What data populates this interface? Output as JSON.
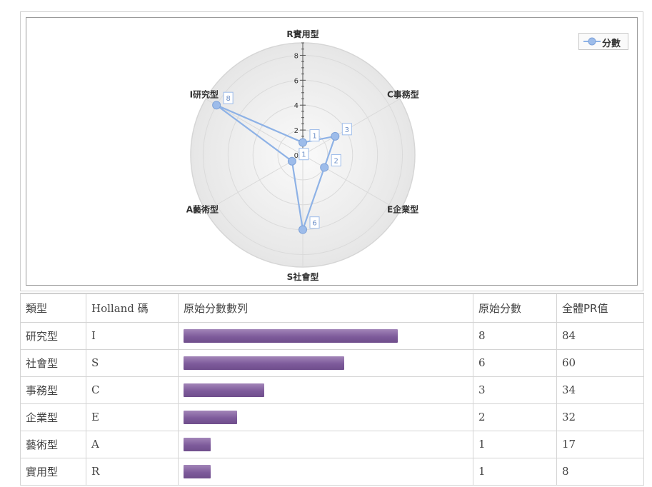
{
  "chart_data": {
    "type": "radar",
    "axes": [
      "R實用型",
      "C事務型",
      "E企業型",
      "S社會型",
      "A藝術型",
      "I研究型"
    ],
    "series": [
      {
        "name": "分數",
        "values": [
          1,
          3,
          2,
          6,
          1,
          8
        ],
        "color": "#8eb2e6"
      }
    ],
    "range": [
      0,
      9
    ],
    "tick_values": [
      0,
      2,
      4,
      6,
      8
    ],
    "data_labels": [
      "1",
      "3",
      "2",
      "6",
      "1",
      "8"
    ],
    "legend_position": "top-right"
  },
  "legend": {
    "label": "分數",
    "color": "#8eb2e6"
  },
  "table": {
    "headers": [
      "類型",
      "Holland 碼",
      "原始分數數列",
      "原始分數",
      "全體PR值"
    ],
    "max_score": 8,
    "rows": [
      {
        "type": "研究型",
        "code": "I",
        "score": 8,
        "score_text": "8",
        "pr": "84"
      },
      {
        "type": "社會型",
        "code": "S",
        "score": 6,
        "score_text": "6",
        "pr": "60"
      },
      {
        "type": "事務型",
        "code": "C",
        "score": 3,
        "score_text": "3",
        "pr": "34"
      },
      {
        "type": "企業型",
        "code": "E",
        "score": 2,
        "score_text": "2",
        "pr": "32"
      },
      {
        "type": "藝術型",
        "code": "A",
        "score": 1,
        "score_text": "1",
        "pr": "17"
      },
      {
        "type": "實用型",
        "code": "R",
        "score": 1,
        "score_text": "1",
        "pr": "8"
      }
    ],
    "bar_color": "#7e5b9b"
  }
}
